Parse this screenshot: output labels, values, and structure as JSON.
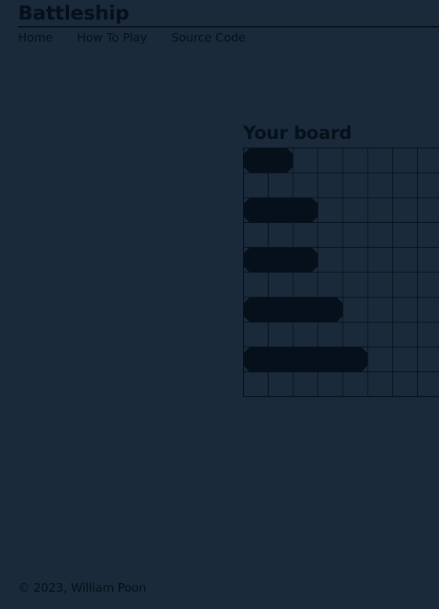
{
  "header": {
    "title": "Battleship",
    "nav": [
      {
        "label": "Home"
      },
      {
        "label": "How To Play"
      },
      {
        "label": "Source Code"
      }
    ]
  },
  "board": {
    "title": "Your board",
    "rows": 10,
    "ships": [
      {
        "row": 0,
        "col": 0,
        "length": 2
      },
      {
        "row": 2,
        "col": 0,
        "length": 3
      },
      {
        "row": 4,
        "col": 0,
        "length": 3
      },
      {
        "row": 6,
        "col": 0,
        "length": 4
      },
      {
        "row": 8,
        "col": 0,
        "length": 5
      }
    ]
  },
  "footer": {
    "text": "© 2023, William Poon"
  },
  "colors": {
    "background": "#1b2a3a",
    "ink": "#05101b",
    "grid_line": "#05101b"
  }
}
